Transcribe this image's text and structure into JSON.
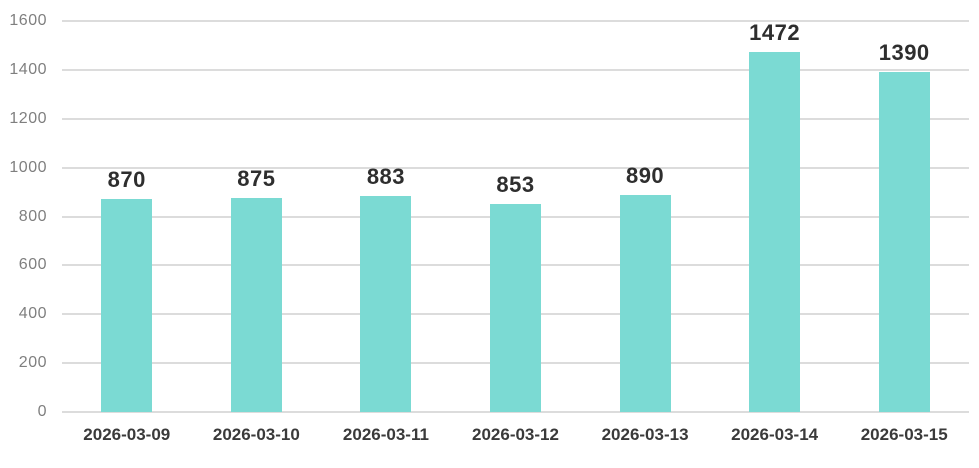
{
  "chart_data": {
    "type": "bar",
    "title": "",
    "xlabel": "",
    "ylabel": "",
    "categories": [
      "2026-03-09",
      "2026-03-10",
      "2026-03-11",
      "2026-03-12",
      "2026-03-13",
      "2026-03-14",
      "2026-03-15"
    ],
    "values": [
      870,
      875,
      883,
      853,
      890,
      1472,
      1390
    ],
    "data_labels_shown": true,
    "ylim": [
      0,
      1600
    ],
    "yticks": [
      0,
      200,
      400,
      600,
      800,
      1000,
      1200,
      1400,
      1600
    ],
    "grid": true,
    "legend_position": "none",
    "colors": {
      "bar_fill": "#7BDAD3",
      "gridline": "#DCDCDC",
      "y_tick_label": "#7F7F7F",
      "x_tick_label": "#3A3A3A",
      "value_label": "#2E2E2E",
      "background": "#FFFFFF"
    }
  }
}
